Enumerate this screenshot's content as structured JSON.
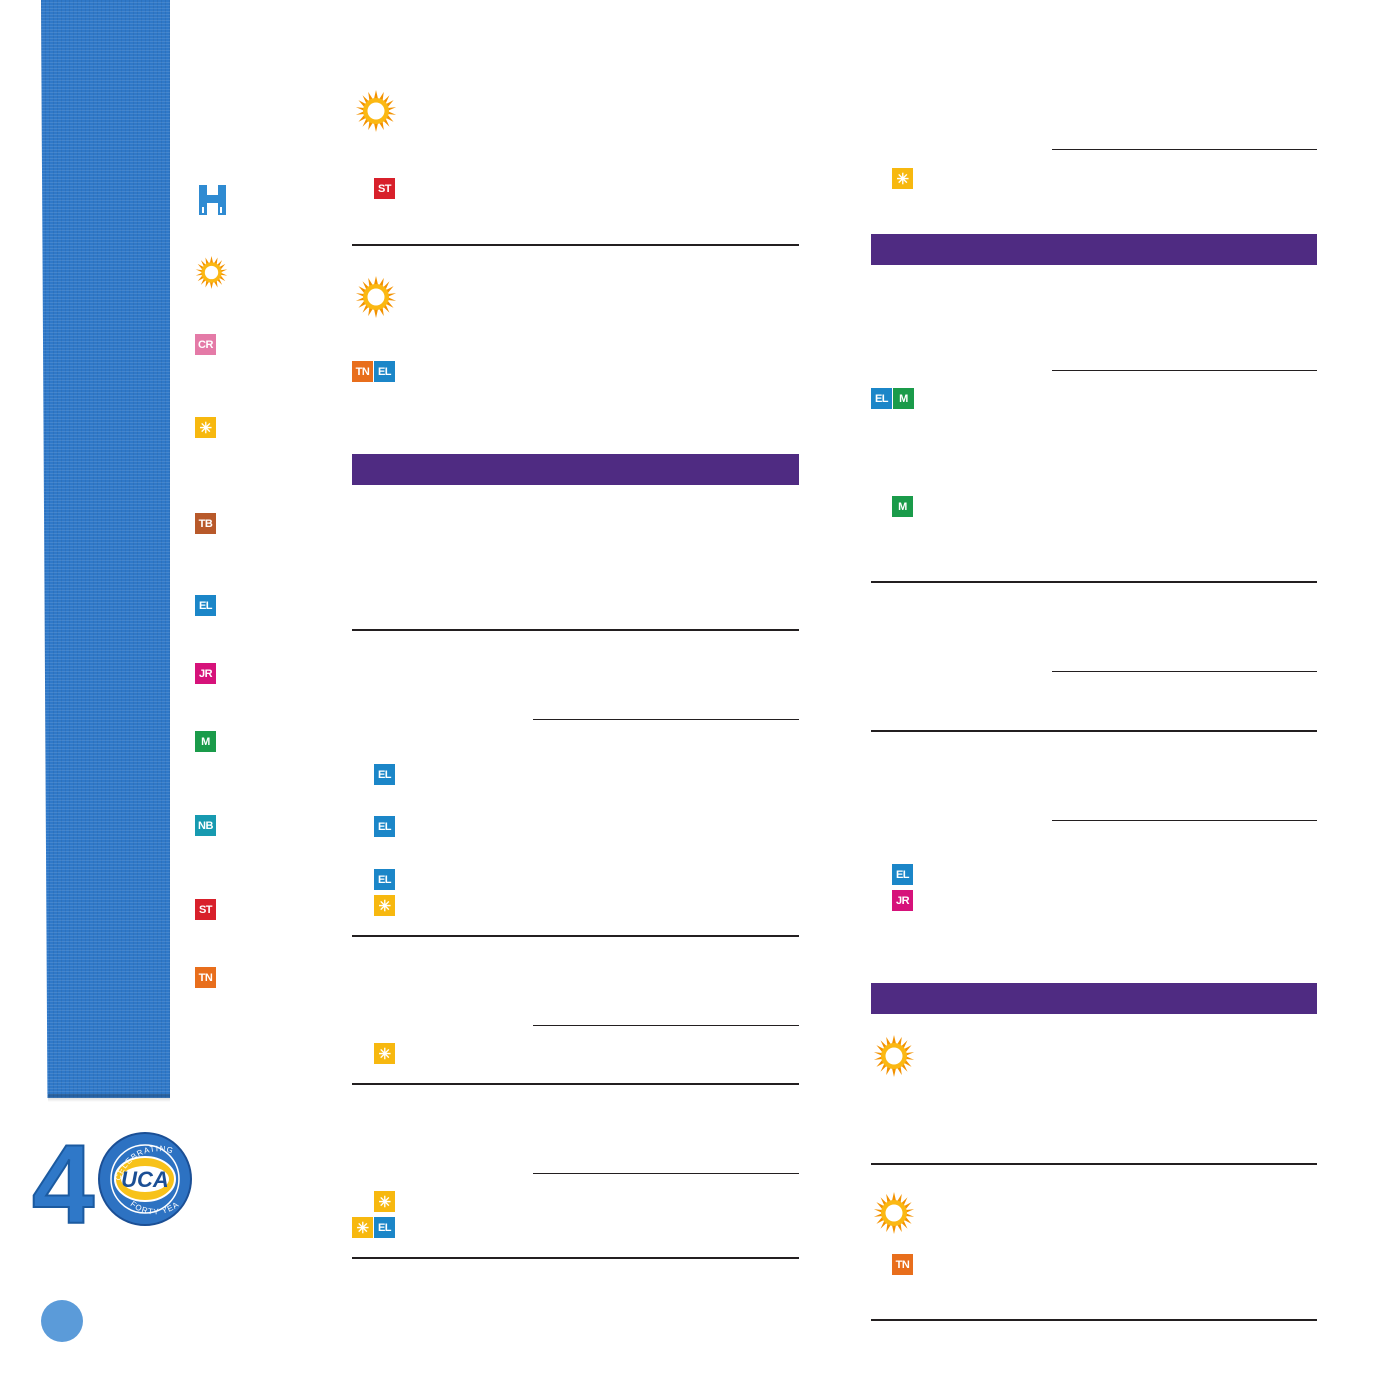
{
  "legend": {
    "h_icon": "hotel-h-icon",
    "sun_icon": "sun-icon",
    "badges": [
      "CR",
      "✳",
      "TB",
      "EL",
      "JR",
      "M",
      "NB",
      "ST",
      "TN"
    ]
  },
  "logo": {
    "number": "4",
    "zero": "0",
    "arc_top": "CELEBRATING",
    "arc_bottom": "FORTY YEARS",
    "brand": "UCA"
  },
  "middle_column": {
    "badge_st": "ST",
    "badge_tn": "TN",
    "badge_el": "EL",
    "star": "✳"
  },
  "right_column": {
    "star": "✳",
    "badge_el": "EL",
    "badge_m": "M",
    "badge_jr": "JR",
    "badge_tn": "TN"
  },
  "colors": {
    "ribbon": "#2f78c8",
    "section_bar": "#4f2b82",
    "cr": "#e47aa7",
    "tb": "#b8592a",
    "el": "#1b86c8",
    "jr": "#d6127a",
    "m": "#1a9b4a",
    "nb": "#179ab0",
    "st": "#d8202b",
    "tn": "#e86e1c",
    "star": "#f7b80f",
    "page_dot": "#5b9bd9"
  }
}
